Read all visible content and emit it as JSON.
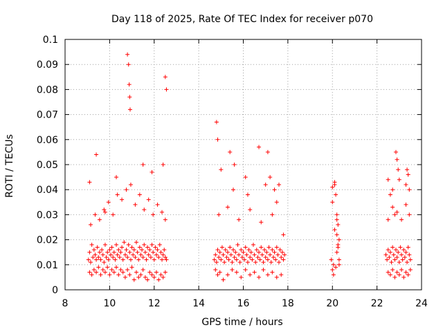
{
  "chart_data": {
    "type": "scatter",
    "title": "Day 118 of 2025, Rate Of TEC Index for receiver p070",
    "xlabel": "GPS time / hours",
    "ylabel": "ROTI / TECUs",
    "xlim": [
      8,
      24
    ],
    "ylim": [
      0,
      0.1
    ],
    "xticks": [
      8,
      10,
      12,
      14,
      16,
      18,
      20,
      22,
      24
    ],
    "xtick_labels": [
      "8",
      "10",
      "12",
      "14",
      "16",
      "18",
      "20",
      "22",
      "24"
    ],
    "yticks": [
      0,
      0.01,
      0.02,
      0.03,
      0.04,
      0.05,
      0.06,
      0.07,
      0.08,
      0.09,
      0.1
    ],
    "ytick_labels": [
      "0",
      "0.01",
      "0.02",
      "0.03",
      "0.04",
      "0.05",
      "0.06",
      "0.07",
      "0.08",
      "0.09",
      "0.1"
    ],
    "grid": true,
    "marker": "+",
    "marker_color": "#ff0000",
    "series": [
      {
        "name": "ROTI",
        "x": [
          9.05,
          9.1,
          9.15,
          9.2,
          9.25,
          9.3,
          9.35,
          9.4,
          9.45,
          9.5,
          9.55,
          9.6,
          9.65,
          9.7,
          9.75,
          9.8,
          9.85,
          9.9,
          9.95,
          10.0,
          10.05,
          10.1,
          10.15,
          10.2,
          10.25,
          10.3,
          10.35,
          10.4,
          10.45,
          10.5,
          10.55,
          10.6,
          10.65,
          10.7,
          10.75,
          10.8,
          10.85,
          10.9,
          10.95,
          11.0,
          11.05,
          11.1,
          11.15,
          11.2,
          11.25,
          11.3,
          11.35,
          11.4,
          11.45,
          11.5,
          11.55,
          11.6,
          11.65,
          11.7,
          11.75,
          11.8,
          11.85,
          11.9,
          11.95,
          12.0,
          12.05,
          12.1,
          12.15,
          12.2,
          12.25,
          12.3,
          12.35,
          12.4,
          12.45,
          12.5,
          12.55,
          9.1,
          9.2,
          9.3,
          9.4,
          9.5,
          9.6,
          9.7,
          9.8,
          9.9,
          10.0,
          10.1,
          10.2,
          10.3,
          10.4,
          10.5,
          10.6,
          10.7,
          10.8,
          10.9,
          11.0,
          11.1,
          11.2,
          11.3,
          11.4,
          11.5,
          11.6,
          11.7,
          11.8,
          11.9,
          12.0,
          12.1,
          12.2,
          12.3,
          12.4,
          12.5,
          9.15,
          9.35,
          9.55,
          9.75,
          9.95,
          10.15,
          10.35,
          10.55,
          10.75,
          10.95,
          11.15,
          11.35,
          11.55,
          11.75,
          11.95,
          12.15,
          12.35,
          12.5,
          9.1,
          9.4,
          9.8,
          10.3,
          10.8,
          10.85,
          10.88,
          10.9,
          10.92,
          11.5,
          11.9,
          12.4,
          12.5,
          12.55,
          14.7,
          14.75,
          14.8,
          14.85,
          14.9,
          14.95,
          15.0,
          15.05,
          15.1,
          15.15,
          15.2,
          15.25,
          15.3,
          15.35,
          15.4,
          15.45,
          15.5,
          15.55,
          15.6,
          15.65,
          15.7,
          15.75,
          15.8,
          15.85,
          15.9,
          15.95,
          16.0,
          16.05,
          16.1,
          16.15,
          16.2,
          16.25,
          16.3,
          16.35,
          16.4,
          16.45,
          16.5,
          16.55,
          16.6,
          16.65,
          16.7,
          16.75,
          16.8,
          16.85,
          16.9,
          16.95,
          17.0,
          17.05,
          17.1,
          17.15,
          17.2,
          17.25,
          17.3,
          17.35,
          17.4,
          17.45,
          17.5,
          17.55,
          17.6,
          17.65,
          17.7,
          17.75,
          17.8,
          17.85,
          14.75,
          14.85,
          14.95,
          15.1,
          15.3,
          15.5,
          15.7,
          15.9,
          16.1,
          16.3,
          16.5,
          16.7,
          16.9,
          17.1,
          17.3,
          17.5,
          17.7,
          14.8,
          14.85,
          15.0,
          15.4,
          15.55,
          15.6,
          16.1,
          16.2,
          16.7,
          17.0,
          17.1,
          17.2,
          17.4,
          17.5,
          17.6,
          14.9,
          15.3,
          15.8,
          16.3,
          16.8,
          17.3,
          17.8,
          19.95,
          20.0,
          20.05,
          20.1,
          20.15,
          20.2,
          20.25,
          20.3,
          20.0,
          20.1,
          20.2,
          20.3,
          20.05,
          20.15,
          20.25,
          20.0,
          20.1,
          20.2,
          20.3,
          20.2,
          20.25,
          22.4,
          22.45,
          22.5,
          22.55,
          22.6,
          22.65,
          22.7,
          22.75,
          22.8,
          22.85,
          22.9,
          22.95,
          23.0,
          23.05,
          23.1,
          23.15,
          23.2,
          23.25,
          23.3,
          23.35,
          23.4,
          23.45,
          23.5,
          22.5,
          22.6,
          22.7,
          22.8,
          22.9,
          23.0,
          23.1,
          23.2,
          23.3,
          23.4,
          23.5,
          22.5,
          22.6,
          22.7,
          22.8,
          22.85,
          22.9,
          22.95,
          23.0,
          23.3,
          23.35,
          23.4,
          23.45,
          22.5,
          22.7,
          22.9,
          23.1,
          23.3,
          23.45
        ],
        "y": [
          0.012,
          0.015,
          0.011,
          0.018,
          0.013,
          0.016,
          0.014,
          0.012,
          0.017,
          0.013,
          0.015,
          0.012,
          0.016,
          0.014,
          0.011,
          0.018,
          0.013,
          0.015,
          0.012,
          0.016,
          0.014,
          0.017,
          0.013,
          0.015,
          0.012,
          0.018,
          0.014,
          0.016,
          0.013,
          0.015,
          0.017,
          0.012,
          0.019,
          0.014,
          0.016,
          0.013,
          0.018,
          0.015,
          0.012,
          0.017,
          0.014,
          0.016,
          0.013,
          0.019,
          0.015,
          0.012,
          0.017,
          0.014,
          0.016,
          0.013,
          0.018,
          0.015,
          0.012,
          0.017,
          0.014,
          0.016,
          0.013,
          0.018,
          0.015,
          0.012,
          0.017,
          0.014,
          0.016,
          0.013,
          0.018,
          0.015,
          0.012,
          0.014,
          0.016,
          0.013,
          0.012,
          0.007,
          0.006,
          0.008,
          0.007,
          0.009,
          0.006,
          0.008,
          0.007,
          0.009,
          0.006,
          0.008,
          0.007,
          0.009,
          0.006,
          0.008,
          0.007,
          0.005,
          0.008,
          0.006,
          0.009,
          0.004,
          0.007,
          0.005,
          0.006,
          0.008,
          0.005,
          0.004,
          0.007,
          0.006,
          0.005,
          0.007,
          0.004,
          0.006,
          0.005,
          0.007,
          0.026,
          0.03,
          0.028,
          0.032,
          0.035,
          0.03,
          0.038,
          0.036,
          0.04,
          0.042,
          0.034,
          0.038,
          0.032,
          0.036,
          0.03,
          0.034,
          0.031,
          0.028,
          0.043,
          0.054,
          0.031,
          0.045,
          0.094,
          0.09,
          0.082,
          0.077,
          0.072,
          0.05,
          0.047,
          0.05,
          0.085,
          0.08,
          0.012,
          0.014,
          0.011,
          0.016,
          0.013,
          0.015,
          0.012,
          0.017,
          0.014,
          0.011,
          0.016,
          0.013,
          0.015,
          0.012,
          0.017,
          0.014,
          0.011,
          0.016,
          0.013,
          0.015,
          0.012,
          0.018,
          0.014,
          0.011,
          0.016,
          0.013,
          0.015,
          0.012,
          0.017,
          0.014,
          0.011,
          0.016,
          0.013,
          0.015,
          0.012,
          0.018,
          0.014,
          0.011,
          0.016,
          0.013,
          0.015,
          0.012,
          0.017,
          0.014,
          0.011,
          0.016,
          0.013,
          0.015,
          0.012,
          0.017,
          0.014,
          0.011,
          0.016,
          0.013,
          0.015,
          0.012,
          0.017,
          0.014,
          0.011,
          0.016,
          0.013,
          0.015,
          0.012,
          0.014,
          0.008,
          0.006,
          0.007,
          0.004,
          0.006,
          0.008,
          0.007,
          0.005,
          0.008,
          0.006,
          0.007,
          0.005,
          0.008,
          0.006,
          0.007,
          0.005,
          0.006,
          0.067,
          0.06,
          0.048,
          0.055,
          0.04,
          0.05,
          0.045,
          0.038,
          0.057,
          0.042,
          0.055,
          0.045,
          0.04,
          0.035,
          0.042,
          0.03,
          0.033,
          0.028,
          0.032,
          0.027,
          0.03,
          0.022,
          0.012,
          0.041,
          0.01,
          0.043,
          0.009,
          0.028,
          0.018,
          0.012,
          0.008,
          0.042,
          0.03,
          0.02,
          0.006,
          0.038,
          0.026,
          0.035,
          0.024,
          0.015,
          0.01,
          0.022,
          0.017,
          0.014,
          0.012,
          0.016,
          0.013,
          0.015,
          0.011,
          0.017,
          0.014,
          0.012,
          0.016,
          0.013,
          0.015,
          0.011,
          0.017,
          0.014,
          0.012,
          0.016,
          0.013,
          0.015,
          0.011,
          0.017,
          0.014,
          0.012,
          0.007,
          0.006,
          0.008,
          0.005,
          0.007,
          0.006,
          0.008,
          0.005,
          0.007,
          0.006,
          0.008,
          0.044,
          0.038,
          0.04,
          0.03,
          0.055,
          0.052,
          0.048,
          0.044,
          0.042,
          0.048,
          0.046,
          0.04,
          0.028,
          0.033,
          0.031,
          0.028,
          0.034,
          0.03
        ]
      }
    ]
  }
}
